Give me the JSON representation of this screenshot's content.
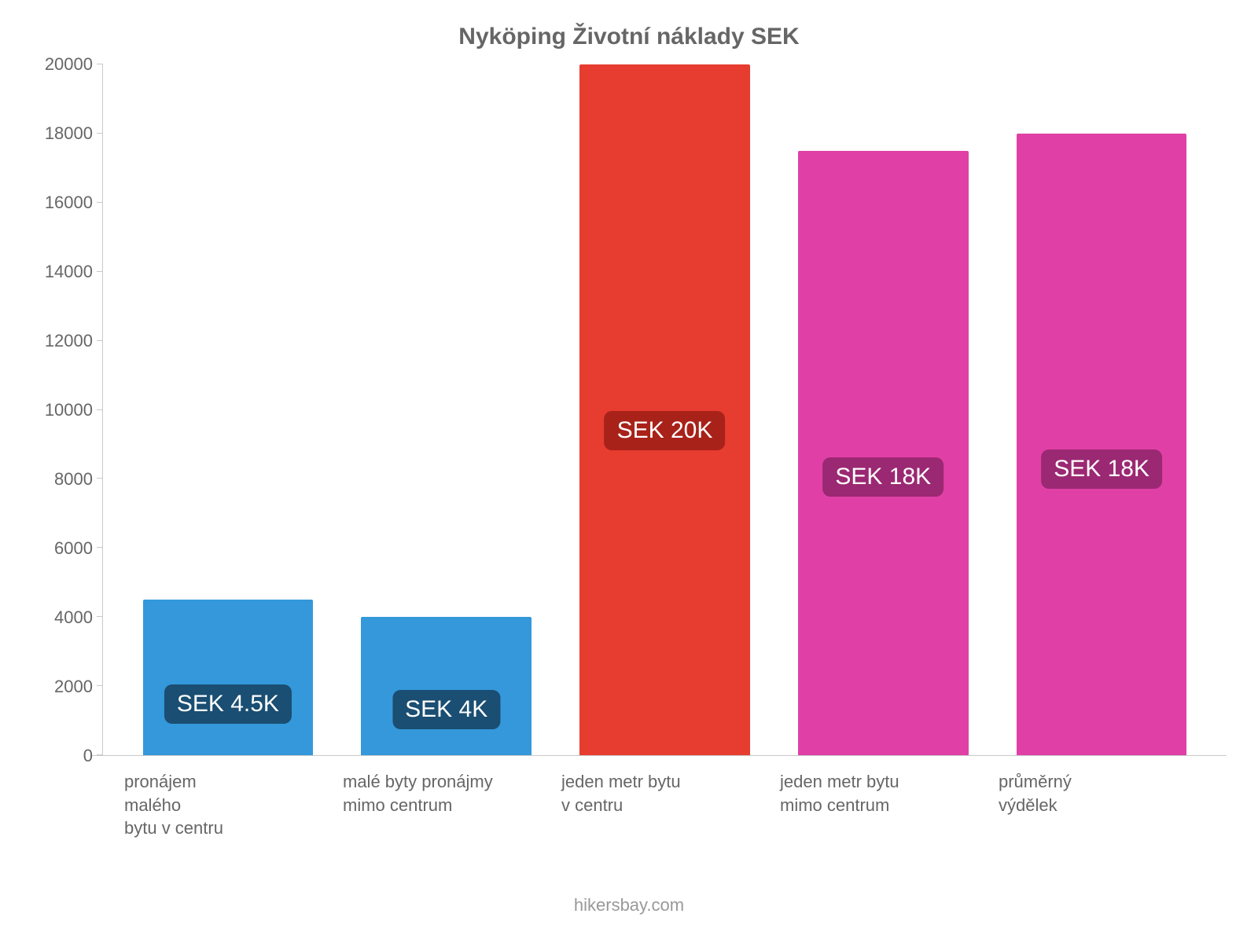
{
  "chart": {
    "type": "bar",
    "title": "Nyköping Životní náklady SEK",
    "title_fontsize": 30,
    "title_color": "#666666",
    "background_color": "#ffffff",
    "axis_color": "#c9c9c9",
    "tick_label_color": "#666666",
    "tick_label_fontsize": 22,
    "ylim": [
      0,
      20000
    ],
    "ytick_step": 2000,
    "yticks": [
      0,
      2000,
      4000,
      6000,
      8000,
      10000,
      12000,
      14000,
      16000,
      18000,
      20000
    ],
    "bar_width_pct": 78,
    "bar_label_fontsize": 30,
    "bar_label_text_color": "#ffffff",
    "bar_label_radius": 10,
    "bars": [
      {
        "category": "pronájem\nmalého\nbytu v centru",
        "value": 4500,
        "value_label": "SEK 4.5K",
        "bar_color": "#3498db",
        "label_bg": "#1a4e72",
        "label_offset_pct": 33
      },
      {
        "category": "malé byty pronájmy\nmimo centrum",
        "value": 4000,
        "value_label": "SEK 4K",
        "bar_color": "#3498db",
        "label_bg": "#1a4e72",
        "label_offset_pct": 33
      },
      {
        "category": "jeden metr bytu\nv centru",
        "value": 20000,
        "value_label": "SEK 20K",
        "bar_color": "#e73c30",
        "label_bg": "#a82219",
        "label_offset_pct": 47
      },
      {
        "category": "jeden metr bytu\nmimo centrum",
        "value": 17500,
        "value_label": "SEK 18K",
        "bar_color": "#e040a6",
        "label_bg": "#9b2872",
        "label_offset_pct": 46
      },
      {
        "category": "průměrný\nvýdělek",
        "value": 18000,
        "value_label": "SEK 18K",
        "bar_color": "#e040a6",
        "label_bg": "#9b2872",
        "label_offset_pct": 46
      }
    ],
    "attribution": "hikersbay.com",
    "attribution_color": "#999999",
    "attribution_fontsize": 22
  }
}
